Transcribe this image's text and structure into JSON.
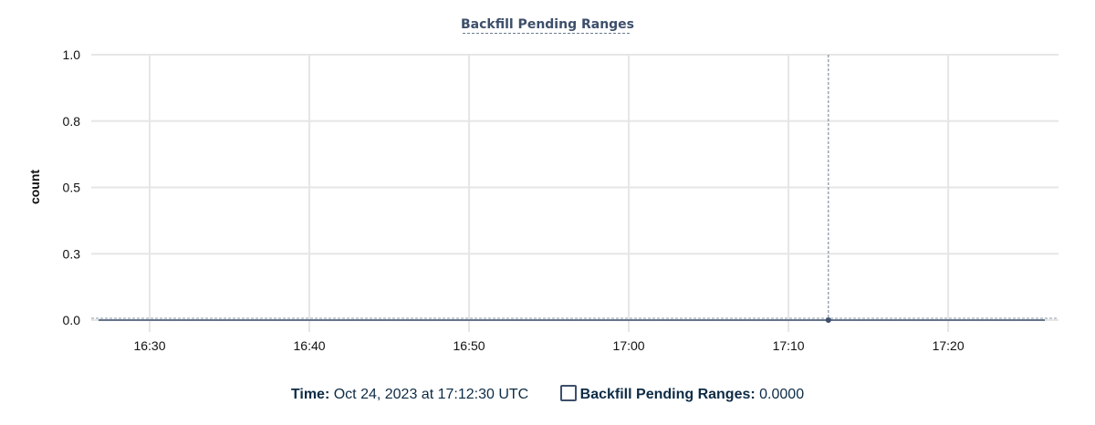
{
  "chart_data": {
    "type": "line",
    "title": "Backfill Pending Ranges",
    "xlabel": "",
    "ylabel": "count",
    "x_ticks": [
      "16:30",
      "16:40",
      "16:50",
      "17:00",
      "17:10",
      "17:20"
    ],
    "y_ticks": [
      "0.0",
      "0.3",
      "0.5",
      "0.8",
      "1.0"
    ],
    "y_tick_values": [
      0,
      0.25,
      0.5,
      0.75,
      1.0
    ],
    "xlim": [
      "16:26:48",
      "17:26:03"
    ],
    "ylim": [
      0,
      1
    ],
    "grid": true,
    "series": [
      {
        "name": "Backfill Pending Ranges",
        "color": "#3d4f6b",
        "x": [
          "16:26:48",
          "17:26:03"
        ],
        "values": [
          0,
          0
        ]
      }
    ],
    "cursor": {
      "x": "17:12:30",
      "value": 0
    }
  },
  "legend": {
    "time_label": "Time:",
    "time_value": "Oct 24, 2023 at 17:12:30 UTC",
    "series_label": "Backfill Pending Ranges:",
    "series_value": "0.0000"
  }
}
